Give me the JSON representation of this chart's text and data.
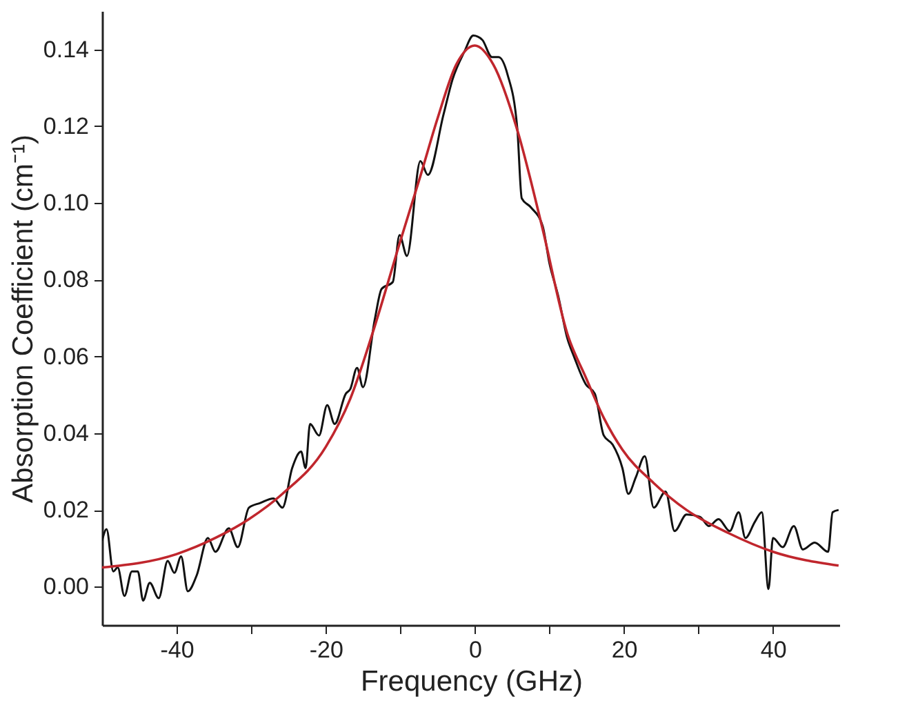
{
  "chart_data": {
    "type": "line",
    "xlabel": "Frequency (GHz)",
    "ylabel": "Absorption Coefficient (cm⁻¹)",
    "xlim": [
      -50,
      49
    ],
    "ylim": [
      -0.01,
      0.15
    ],
    "xticks": [
      -40,
      {
        "value": -30,
        "label": null
      },
      -20,
      {
        "value": -10,
        "label": null
      },
      0,
      {
        "value": 10,
        "label": null
      },
      20,
      {
        "value": 30,
        "label": null
      },
      40
    ],
    "yticks": [
      {
        "value": 0,
        "label": "0.00"
      },
      {
        "value": 0.02,
        "label": "0.02"
      },
      {
        "value": 0.04,
        "label": "0.04"
      },
      {
        "value": 0.06,
        "label": "0.06"
      },
      {
        "value": 0.08,
        "label": "0.08"
      },
      {
        "value": 0.1,
        "label": "0.10"
      },
      {
        "value": 0.12,
        "label": "0.12"
      },
      {
        "value": 0.14,
        "label": "0.14"
      }
    ],
    "grid": false,
    "marker": "none",
    "line_style": "solid",
    "series": [
      {
        "color": "#111111",
        "x": [
          -50,
          -49.4,
          -48.5,
          -47.9,
          -47,
          -46,
          -45.2,
          -44.5,
          -43.6,
          -42.4,
          -41.2,
          -40.3,
          -39.4,
          -38.5,
          -37.3,
          -35.8,
          -34.8,
          -33,
          -31.8,
          -30.3,
          -28.8,
          -27,
          -25.8,
          -24.5,
          -23.3,
          -22.7,
          -22.1,
          -20.9,
          -19.8,
          -18.8,
          -17.3,
          -16.7,
          -15.8,
          -15,
          -13.4,
          -12.5,
          -11,
          -10.1,
          -9.1,
          -7.3,
          -6.3,
          -4.2,
          -3,
          -1.4,
          -0.2,
          1,
          2.3,
          3.2,
          4.4,
          5.7,
          6.3,
          7.5,
          9.1,
          10,
          11.2,
          12.4,
          13.3,
          14.9,
          16.1,
          17.3,
          18.5,
          19.8,
          20.6,
          21.6,
          22.8,
          24,
          25.6,
          26.8,
          28.4,
          30.2,
          31.4,
          32.7,
          34.2,
          35.4,
          36.3,
          37.6,
          38.5,
          39.4,
          40,
          41.3,
          42.8,
          44,
          45.6,
          47.4,
          48,
          48.8
        ],
        "values": [
          0.012,
          0.015,
          0.004,
          0.005,
          -0.0024,
          0.004,
          0.004,
          -0.0036,
          0.001,
          -0.003,
          0.0067,
          0.0036,
          0.0079,
          -0.0012,
          0.003,
          0.0127,
          0.0091,
          0.0152,
          0.0103,
          0.0206,
          0.0218,
          0.023,
          0.0206,
          0.0309,
          0.0352,
          0.0309,
          0.0424,
          0.0394,
          0.0473,
          0.0424,
          0.0503,
          0.0515,
          0.057,
          0.052,
          0.0698,
          0.0776,
          0.0794,
          0.0916,
          0.0862,
          0.1109,
          0.1073,
          0.123,
          0.1321,
          0.1394,
          0.1436,
          0.1425,
          0.138,
          0.138,
          0.1334,
          0.1194,
          0.1012,
          0.0989,
          0.094,
          0.0844,
          0.0757,
          0.0648,
          0.06,
          0.0527,
          0.0503,
          0.0394,
          0.037,
          0.0309,
          0.0242,
          0.0285,
          0.034,
          0.0206,
          0.0248,
          0.0145,
          0.0188,
          0.0182,
          0.0158,
          0.0176,
          0.0145,
          0.0194,
          0.0127,
          0.017,
          0.0194,
          -0.0006,
          0.0127,
          0.0103,
          0.0158,
          0.0097,
          0.0115,
          0.0091,
          0.0194,
          0.02
        ]
      },
      {
        "color": "#c0262d",
        "x": [
          -50,
          -40,
          -34.8,
          -30.3,
          -25.8,
          -20,
          -16.7,
          -13.4,
          -10,
          -7.3,
          -5,
          -2.5,
          0,
          2.5,
          5.7,
          9,
          12.4,
          14.9,
          17.3,
          19.8,
          24,
          28.4,
          34,
          40,
          48.8
        ],
        "values": [
          0.005,
          0.0085,
          0.0127,
          0.0176,
          0.0242,
          0.0364,
          0.049,
          0.068,
          0.09,
          0.107,
          0.122,
          0.136,
          0.141,
          0.136,
          0.119,
          0.094,
          0.066,
          0.0545,
          0.044,
          0.0357,
          0.027,
          0.02,
          0.014,
          0.0091,
          0.0055
        ]
      }
    ]
  }
}
